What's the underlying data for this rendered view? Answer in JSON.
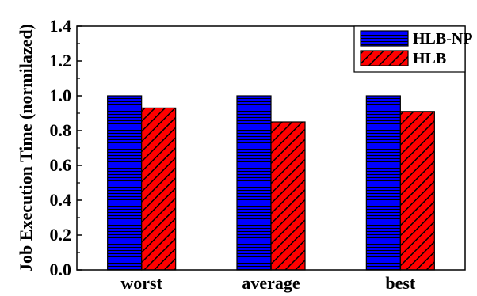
{
  "chart_data": {
    "type": "bar",
    "categories": [
      "worst",
      "average",
      "best"
    ],
    "series": [
      {
        "name": "HLB-NP",
        "values": [
          1.0,
          1.0,
          1.0
        ],
        "color": "#0000ff",
        "pattern": "horizontal-lines"
      },
      {
        "name": "HLB",
        "values": [
          0.93,
          0.85,
          0.91
        ],
        "color": "#ff0000",
        "pattern": "diagonal-hatch"
      }
    ],
    "title": "",
    "xlabel": "",
    "ylabel": "Job Execution Time (normilazed)",
    "ylim": [
      0.0,
      1.4
    ],
    "yticks": [
      "0.0",
      "0.2",
      "0.4",
      "0.6",
      "0.8",
      "1.0",
      "1.2",
      "1.4"
    ],
    "grid": false,
    "legend_position": "top-right"
  }
}
